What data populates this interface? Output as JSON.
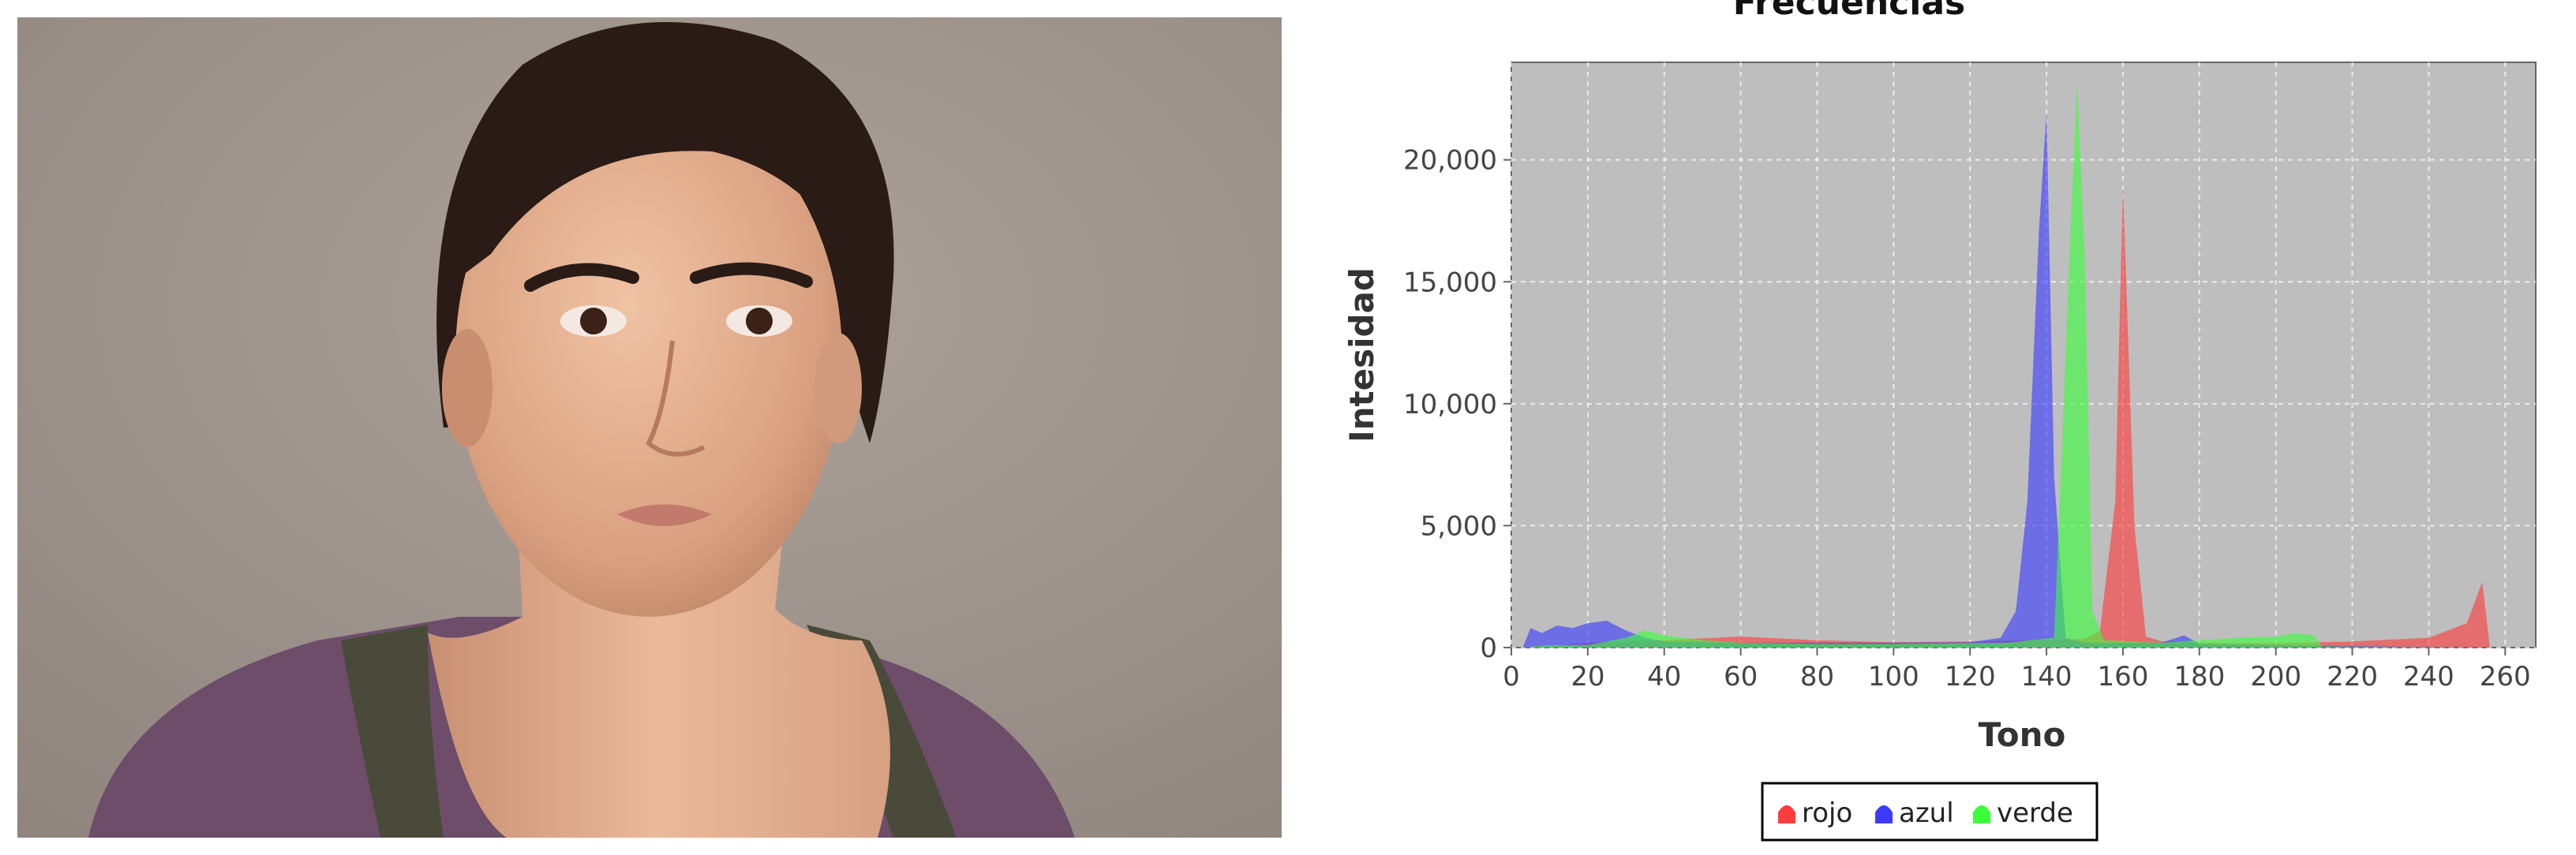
{
  "photo": {
    "subject": "portrait-photo"
  },
  "chart_data": {
    "type": "area",
    "title": "Frecuencias",
    "xlabel": "Tono",
    "ylabel": "Intesidad",
    "xlim": [
      0,
      268
    ],
    "ylim": [
      0,
      24000
    ],
    "x_ticks": [
      0,
      20,
      40,
      60,
      80,
      100,
      120,
      140,
      160,
      180,
      200,
      220,
      240,
      260
    ],
    "x_tick_labels": [
      "0",
      "20",
      "40",
      "60",
      "80",
      "100",
      "120",
      "140",
      "160",
      "180",
      "200",
      "220",
      "240",
      "260"
    ],
    "y_ticks": [
      0,
      5000,
      10000,
      15000,
      20000
    ],
    "y_tick_labels": [
      "0",
      "5,000",
      "10,000",
      "15,000",
      "20,000"
    ],
    "grid": true,
    "legend_position": "bottom-center",
    "background_color": "#bebebe",
    "series": [
      {
        "name": "rojo",
        "color": "#ff3b3b",
        "x": [
          5,
          20,
          40,
          60,
          80,
          100,
          120,
          140,
          150,
          154,
          158,
          160,
          163,
          166,
          170,
          180,
          200,
          220,
          240,
          250,
          254,
          256
        ],
        "y": [
          0,
          200,
          300,
          450,
          300,
          220,
          250,
          300,
          350,
          700,
          6000,
          19000,
          5000,
          450,
          260,
          200,
          180,
          250,
          400,
          1000,
          2700,
          0
        ]
      },
      {
        "name": "azul",
        "color": "#3b3bff",
        "x": [
          3,
          5,
          8,
          12,
          16,
          20,
          25,
          30,
          35,
          40,
          60,
          100,
          120,
          128,
          132,
          135,
          138,
          140,
          142,
          145,
          150,
          170,
          176,
          180,
          200,
          256
        ],
        "y": [
          0,
          800,
          600,
          900,
          800,
          1000,
          1100,
          700,
          400,
          250,
          200,
          200,
          220,
          400,
          1500,
          6000,
          17000,
          22000,
          7000,
          400,
          200,
          200,
          500,
          150,
          100,
          0
        ]
      },
      {
        "name": "verde",
        "color": "#3bff3b",
        "x": [
          3,
          10,
          20,
          30,
          35,
          40,
          50,
          60,
          80,
          100,
          130,
          142,
          144,
          146,
          148,
          150,
          152,
          155,
          170,
          180,
          190,
          200,
          205,
          210,
          212,
          256
        ],
        "y": [
          0,
          100,
          100,
          400,
          700,
          500,
          300,
          200,
          150,
          150,
          200,
          400,
          8000,
          16000,
          23200,
          16000,
          1500,
          300,
          200,
          300,
          400,
          450,
          600,
          500,
          50,
          0
        ]
      }
    ]
  }
}
